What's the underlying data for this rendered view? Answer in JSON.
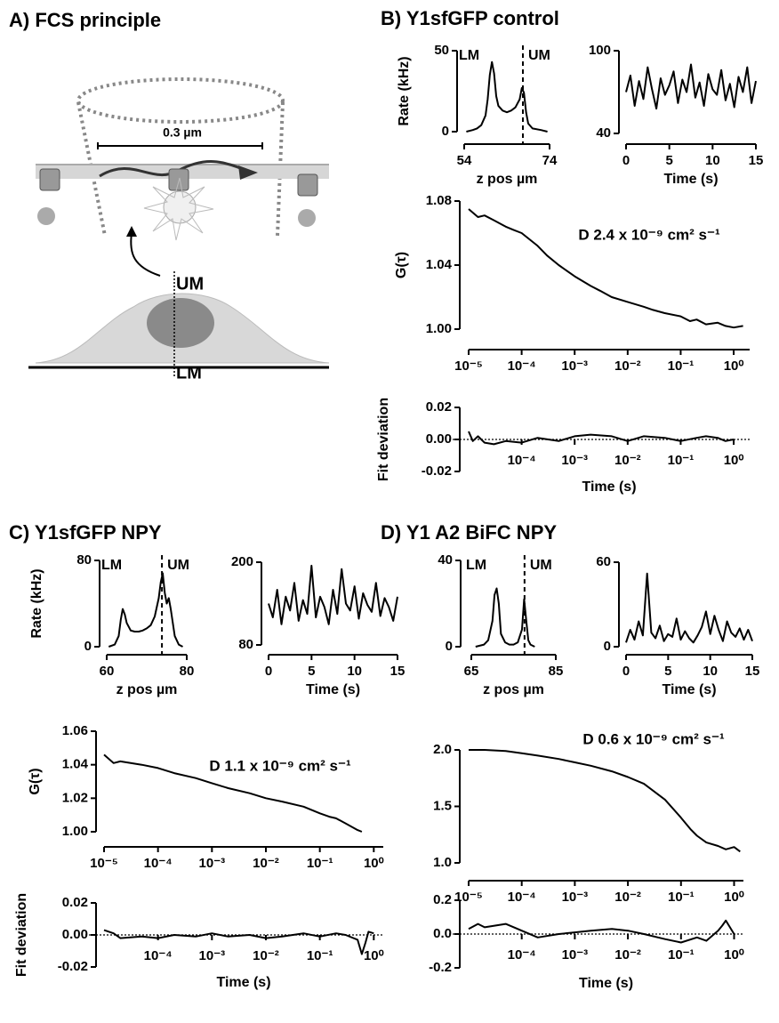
{
  "panel_titles": [
    "A) FCS principle",
    "B) Y1sfGFP control",
    "C) Y1sfGFP NPY",
    "D) Y1 A2 BiFC NPY"
  ],
  "diagram": {
    "scale": "0.3 µm",
    "upper": "UM",
    "lower": "LM"
  },
  "chart_data": [
    {
      "type": "line",
      "ylabel": "Rate (kHz)",
      "xlabel": "z pos µm",
      "labels": [
        "LM",
        "UM"
      ],
      "vline": 67.75,
      "xlim": [
        54,
        74
      ],
      "xticks": [
        54,
        74
      ],
      "ylim": [
        0,
        50
      ],
      "yticks": [
        0,
        50
      ],
      "color": "#000000",
      "x": [
        54.5,
        56,
        57,
        58,
        59,
        59.5,
        60,
        60.5,
        61,
        61.5,
        62,
        63,
        64,
        65,
        66,
        67,
        67.5,
        68,
        68.5,
        69,
        70,
        72,
        73.5
      ],
      "values": [
        0,
        1,
        2,
        4,
        10,
        20,
        35,
        43,
        36,
        22,
        16,
        13,
        12,
        13,
        15,
        20,
        27,
        24,
        12,
        5,
        2,
        1,
        0
      ]
    },
    {
      "type": "line",
      "xlabel": "Time (s)",
      "xlim": [
        0,
        15
      ],
      "xticks": [
        0,
        5,
        10,
        15
      ],
      "ylim": [
        40,
        100
      ],
      "yticks": [
        40,
        100
      ],
      "color": "#000000",
      "x": [
        0,
        0.5,
        1,
        1.5,
        2,
        2.5,
        3,
        3.5,
        4,
        4.5,
        5,
        5.5,
        6,
        6.5,
        7,
        7.5,
        8,
        8.5,
        9,
        9.5,
        10,
        10.5,
        11,
        11.5,
        12,
        12.5,
        13,
        13.5,
        14,
        14.5,
        15
      ],
      "values": [
        70,
        82,
        60,
        78,
        65,
        88,
        72,
        58,
        80,
        68,
        75,
        85,
        62,
        79,
        70,
        90,
        66,
        77,
        60,
        83,
        72,
        68,
        86,
        64,
        76,
        59,
        81,
        70,
        88,
        62,
        78
      ]
    },
    {
      "type": "line",
      "ylabel": "G(τ)",
      "annotation": "D 2.4 x 10⁻⁹ cm² s⁻¹",
      "xscale": "log",
      "xlim": [
        1e-05,
        2
      ],
      "xticks": [
        {
          "value": 1e-05,
          "label": "10⁻⁵"
        },
        {
          "value": 0.0001,
          "label": "10⁻⁴"
        },
        {
          "value": 0.001,
          "label": "10⁻³"
        },
        {
          "value": 0.01,
          "label": "10⁻²"
        },
        {
          "value": 0.1,
          "label": "10⁻¹"
        },
        {
          "value": 1,
          "label": "10⁰"
        }
      ],
      "ylim": [
        1,
        1.08
      ],
      "yticks": [
        {
          "value": 1,
          "label": "1.00"
        },
        1.04,
        1.08
      ],
      "color": "#000000",
      "x": [
        1e-05,
        1.5e-05,
        2e-05,
        3e-05,
        5e-05,
        7e-05,
        0.0001,
        0.0002,
        0.0003,
        0.0005,
        0.001,
        0.002,
        0.003,
        0.005,
        0.01,
        0.02,
        0.03,
        0.05,
        0.1,
        0.15,
        0.2,
        0.3,
        0.5,
        0.7,
        1,
        1.5
      ],
      "values": [
        1.075,
        1.07,
        1.071,
        1.068,
        1.064,
        1.062,
        1.06,
        1.052,
        1.046,
        1.04,
        1.033,
        1.027,
        1.024,
        1.02,
        1.017,
        1.014,
        1.012,
        1.01,
        1.008,
        1.005,
        1.006,
        1.003,
        1.004,
        1.002,
        1.001,
        1.002
      ]
    },
    {
      "type": "line",
      "ylabel": "Fit deviation",
      "xlabel": "Time (s)",
      "hline": 0,
      "xscale": "log",
      "xlim": [
        1e-05,
        2
      ],
      "xticks": [
        {
          "value": 0.0001,
          "label": "10⁻⁴"
        },
        {
          "value": 0.001,
          "label": "10⁻³"
        },
        {
          "value": 0.01,
          "label": "10⁻²"
        },
        {
          "value": 0.1,
          "label": "10⁻¹"
        },
        {
          "value": 1,
          "label": "10⁰"
        }
      ],
      "ylim": [
        -0.02,
        0.02
      ],
      "yticks": [
        0.02,
        {
          "value": 0,
          "label": "0.00"
        },
        -0.02
      ],
      "color": "#000000",
      "x": [
        1e-05,
        1.2e-05,
        1.5e-05,
        2e-05,
        3e-05,
        5e-05,
        0.0001,
        0.0002,
        0.0005,
        0.001,
        0.002,
        0.005,
        0.01,
        0.02,
        0.05,
        0.1,
        0.2,
        0.3,
        0.5,
        0.7,
        1
      ],
      "values": [
        0.005,
        -0.001,
        0.002,
        -0.002,
        -0.003,
        -0.001,
        -0.002,
        0.001,
        -0.001,
        0.002,
        0.003,
        0.002,
        -0.001,
        0.002,
        0.001,
        -0.001,
        0.001,
        0.002,
        0.001,
        -0.001,
        0
      ]
    },
    {
      "type": "line",
      "ylabel": "Rate (kHz)",
      "xlabel": "z pos µm",
      "labels": [
        "LM",
        "UM"
      ],
      "vline": 73.8,
      "xlim": [
        60,
        80
      ],
      "xticks": [
        60,
        80
      ],
      "ylim": [
        0,
        80
      ],
      "yticks": [
        0,
        80
      ],
      "color": "#000000",
      "x": [
        60.5,
        62,
        63,
        63.5,
        64,
        64.5,
        65,
        66,
        67,
        68,
        69,
        70,
        71,
        72,
        73,
        73.5,
        74,
        74.5,
        75,
        75.5,
        76,
        77,
        78,
        79
      ],
      "values": [
        0,
        2,
        10,
        25,
        35,
        30,
        22,
        15,
        14,
        14,
        15,
        17,
        20,
        28,
        45,
        60,
        68,
        50,
        40,
        45,
        35,
        10,
        2,
        0
      ]
    },
    {
      "type": "line",
      "xlabel": "Time (s)",
      "xlim": [
        0,
        15
      ],
      "xticks": [
        0,
        5,
        10,
        15
      ],
      "ylim": [
        80,
        200
      ],
      "yticks": [
        80,
        200
      ],
      "color": "#000000",
      "x": [
        0,
        0.5,
        1,
        1.5,
        2,
        2.5,
        3,
        3.5,
        4,
        4.5,
        5,
        5.5,
        6,
        6.5,
        7,
        7.5,
        8,
        8.5,
        9,
        9.5,
        10,
        10.5,
        11,
        11.5,
        12,
        12.5,
        13,
        13.5,
        14,
        14.5,
        15
      ],
      "values": [
        140,
        120,
        160,
        110,
        150,
        130,
        170,
        115,
        145,
        125,
        195,
        120,
        150,
        135,
        110,
        160,
        125,
        190,
        140,
        130,
        165,
        118,
        155,
        138,
        128,
        170,
        122,
        148,
        135,
        115,
        150
      ]
    },
    {
      "type": "line",
      "ylabel": "G(τ)",
      "annotation": "D 1.1 x 10⁻⁹ cm² s⁻¹",
      "xscale": "log",
      "xlim": [
        1e-05,
        1.5
      ],
      "xticks": [
        {
          "value": 1e-05,
          "label": "10⁻⁵"
        },
        {
          "value": 0.0001,
          "label": "10⁻⁴"
        },
        {
          "value": 0.001,
          "label": "10⁻³"
        },
        {
          "value": 0.01,
          "label": "10⁻²"
        },
        {
          "value": 0.1,
          "label": "10⁻¹"
        },
        {
          "value": 1,
          "label": "10⁰"
        }
      ],
      "ylim": [
        1,
        1.06
      ],
      "yticks": [
        {
          "value": 1,
          "label": "1.00"
        },
        1.02,
        1.04,
        1.06
      ],
      "color": "#000000",
      "x": [
        1e-05,
        1.5e-05,
        2e-05,
        5e-05,
        0.0001,
        0.0002,
        0.0005,
        0.001,
        0.002,
        0.005,
        0.01,
        0.02,
        0.05,
        0.1,
        0.15,
        0.2,
        0.3,
        0.5,
        0.6
      ],
      "values": [
        1.046,
        1.041,
        1.042,
        1.04,
        1.038,
        1.035,
        1.032,
        1.029,
        1.026,
        1.023,
        1.02,
        1.018,
        1.015,
        1.011,
        1.009,
        1.008,
        1.005,
        1.001,
        1
      ]
    },
    {
      "type": "line",
      "ylabel": "Fit deviation",
      "xlabel": "Time (s)",
      "hline": 0,
      "xscale": "log",
      "xlim": [
        1e-05,
        1.5
      ],
      "xticks": [
        {
          "value": 0.0001,
          "label": "10⁻⁴"
        },
        {
          "value": 0.001,
          "label": "10⁻³"
        },
        {
          "value": 0.01,
          "label": "10⁻²"
        },
        {
          "value": 0.1,
          "label": "10⁻¹"
        },
        {
          "value": 1,
          "label": "10⁰"
        }
      ],
      "ylim": [
        -0.02,
        0.02
      ],
      "yticks": [
        0.02,
        {
          "value": 0,
          "label": "0.00"
        },
        -0.02
      ],
      "color": "#000000",
      "x": [
        1e-05,
        1.5e-05,
        2e-05,
        5e-05,
        0.0001,
        0.0002,
        0.0005,
        0.001,
        0.002,
        0.005,
        0.01,
        0.02,
        0.05,
        0.1,
        0.2,
        0.3,
        0.5,
        0.6,
        0.7,
        0.8,
        1
      ],
      "values": [
        0.003,
        0.001,
        -0.002,
        -0.001,
        -0.002,
        0,
        -0.001,
        0.001,
        -0.001,
        0,
        -0.002,
        -0.001,
        0.001,
        -0.001,
        0.001,
        0,
        -0.003,
        -0.012,
        -0.005,
        0.002,
        0.001
      ]
    },
    {
      "type": "line",
      "xlabel": "z pos µm",
      "labels": [
        "LM",
        "UM"
      ],
      "vline": 77.6,
      "xlim": [
        65,
        85
      ],
      "xticks": [
        65,
        85
      ],
      "ylim": [
        0,
        40
      ],
      "yticks": [
        0,
        40
      ],
      "color": "#000000",
      "x": [
        66,
        68,
        69,
        70,
        70.5,
        71,
        71.5,
        72,
        73,
        74,
        75,
        76,
        77,
        77.5,
        78,
        78.5,
        79,
        80
      ],
      "values": [
        0,
        1,
        3,
        12,
        24,
        27,
        20,
        6,
        2,
        1,
        1,
        2,
        8,
        22,
        12,
        3,
        1,
        0
      ]
    },
    {
      "type": "line",
      "xlabel": "Time (s)",
      "xlim": [
        0,
        15
      ],
      "xticks": [
        0,
        5,
        10,
        15
      ],
      "ylim": [
        0,
        60
      ],
      "yticks": [
        0,
        60
      ],
      "color": "#000000",
      "x": [
        0,
        0.5,
        1,
        1.5,
        2,
        2.5,
        3,
        3.5,
        4,
        4.5,
        5,
        5.5,
        6,
        6.5,
        7,
        7.5,
        8,
        8.5,
        9,
        9.5,
        10,
        10.5,
        11,
        11.5,
        12,
        12.5,
        13,
        13.5,
        14,
        14.5,
        15
      ],
      "values": [
        3,
        12,
        5,
        18,
        8,
        52,
        10,
        6,
        15,
        4,
        9,
        7,
        20,
        5,
        11,
        6,
        3,
        8,
        14,
        25,
        9,
        22,
        12,
        4,
        18,
        10,
        7,
        13,
        5,
        12,
        4
      ]
    },
    {
      "type": "line",
      "annotation": "D 0.6 x 10⁻⁹ cm² s⁻¹",
      "xscale": "log",
      "xlim": [
        1e-05,
        1.5
      ],
      "xticks": [
        {
          "value": 1e-05,
          "label": "10⁻⁵"
        },
        {
          "value": 0.0001,
          "label": "10⁻⁴"
        },
        {
          "value": 0.001,
          "label": "10⁻³"
        },
        {
          "value": 0.01,
          "label": "10⁻²"
        },
        {
          "value": 0.1,
          "label": "10⁻¹"
        },
        {
          "value": 1,
          "label": "10⁰"
        }
      ],
      "ylim": [
        1,
        2
      ],
      "yticks": [
        {
          "value": 1,
          "label": "1.0"
        },
        1.5,
        {
          "value": 2,
          "label": "2.0"
        }
      ],
      "color": "#000000",
      "x": [
        1e-05,
        2e-05,
        5e-05,
        0.0001,
        0.0002,
        0.0005,
        0.001,
        0.002,
        0.005,
        0.01,
        0.02,
        0.05,
        0.1,
        0.15,
        0.2,
        0.3,
        0.5,
        0.7,
        1,
        1.3
      ],
      "values": [
        2,
        2,
        1.99,
        1.97,
        1.95,
        1.92,
        1.89,
        1.86,
        1.81,
        1.76,
        1.7,
        1.56,
        1.4,
        1.3,
        1.24,
        1.18,
        1.15,
        1.12,
        1.14,
        1.1
      ]
    },
    {
      "type": "line",
      "xlabel": "Time (s)",
      "hline": 0,
      "xscale": "log",
      "xlim": [
        1e-05,
        1.5
      ],
      "xticks": [
        {
          "value": 0.0001,
          "label": "10⁻⁴"
        },
        {
          "value": 0.001,
          "label": "10⁻³"
        },
        {
          "value": 0.01,
          "label": "10⁻²"
        },
        {
          "value": 0.1,
          "label": "10⁻¹"
        },
        {
          "value": 1,
          "label": "10⁰"
        }
      ],
      "ylim": [
        -0.2,
        0.2
      ],
      "yticks": [
        0.2,
        {
          "value": 0,
          "label": "0.0"
        },
        -0.2
      ],
      "color": "#000000",
      "x": [
        1e-05,
        1.5e-05,
        2e-05,
        5e-05,
        0.0001,
        0.0002,
        0.0005,
        0.001,
        0.002,
        0.005,
        0.01,
        0.02,
        0.05,
        0.1,
        0.2,
        0.3,
        0.5,
        0.6,
        0.7,
        0.8,
        1
      ],
      "values": [
        0.03,
        0.06,
        0.04,
        0.06,
        0.02,
        -0.02,
        0,
        0.01,
        0.02,
        0.03,
        0.02,
        0,
        -0.03,
        -0.05,
        -0.02,
        -0.04,
        0.02,
        0.05,
        0.08,
        0.05,
        0
      ]
    }
  ]
}
